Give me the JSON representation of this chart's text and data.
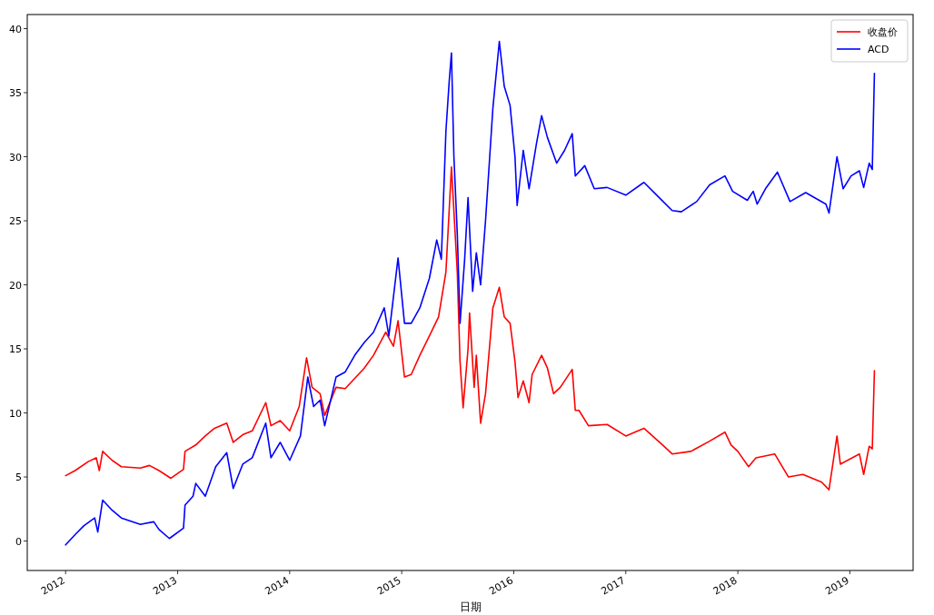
{
  "chart_data": {
    "type": "line",
    "xlabel": "日期",
    "legend": "top right",
    "xlim": [
      "2011-08-29",
      "2019-07-26"
    ],
    "ylim": [
      -2.3,
      41.1
    ],
    "xticks": [
      "2012",
      "2013",
      "2014",
      "2015",
      "2016",
      "2017",
      "2018",
      "2019"
    ],
    "yticks": [
      0,
      5,
      10,
      15,
      20,
      25,
      30,
      35,
      40
    ],
    "series": [
      {
        "name": "收盘价",
        "color": "#ff0000",
        "x": [
          "2012-01-01",
          "2012-02-01",
          "2012-03-15",
          "2012-04-10",
          "2012-04-20",
          "2012-05-01",
          "2012-06-01",
          "2012-07-01",
          "2012-09-01",
          "2012-10-01",
          "2012-11-01",
          "2012-12-10",
          "2013-01-20",
          "2013-01-25",
          "2013-03-01",
          "2013-04-01",
          "2013-05-01",
          "2013-06-10",
          "2013-07-01",
          "2013-08-01",
          "2013-09-01",
          "2013-10-15",
          "2013-11-01",
          "2013-12-01",
          "2014-01-01",
          "2014-02-01",
          "2014-02-25",
          "2014-03-15",
          "2014-04-10",
          "2014-04-25",
          "2014-06-01",
          "2014-07-01",
          "2014-09-01",
          "2014-10-01",
          "2014-11-10",
          "2014-12-05",
          "2014-12-20",
          "2015-01-10",
          "2015-02-01",
          "2015-03-01",
          "2015-04-01",
          "2015-05-01",
          "2015-05-25",
          "2015-06-12",
          "2015-07-01",
          "2015-07-10",
          "2015-07-20",
          "2015-08-05",
          "2015-08-10",
          "2015-08-25",
          "2015-09-01",
          "2015-09-15",
          "2015-10-01",
          "2015-10-25",
          "2015-11-15",
          "2015-12-01",
          "2015-12-20",
          "2016-01-05",
          "2016-01-15",
          "2016-02-01",
          "2016-02-20",
          "2016-03-01",
          "2016-04-01",
          "2016-04-20",
          "2016-05-10",
          "2016-06-01",
          "2016-07-10",
          "2016-07-20",
          "2016-08-01",
          "2016-09-01",
          "2016-11-01",
          "2017-01-01",
          "2017-03-01",
          "2017-05-01",
          "2017-06-01",
          "2017-08-01",
          "2017-10-01",
          "2017-11-20",
          "2017-12-10",
          "2018-01-01",
          "2018-02-05",
          "2018-03-01",
          "2018-05-01",
          "2018-06-15",
          "2018-08-01",
          "2018-10-01",
          "2018-10-25",
          "2018-11-20",
          "2018-12-01",
          "2019-02-01",
          "2019-02-15",
          "2019-03-05",
          "2019-03-15",
          "2019-03-22"
        ],
        "values": [
          5.1,
          5.5,
          6.2,
          6.5,
          5.5,
          7.0,
          6.3,
          5.8,
          5.7,
          5.9,
          5.5,
          4.9,
          5.6,
          7.0,
          7.5,
          8.2,
          8.8,
          9.2,
          7.7,
          8.3,
          8.6,
          10.8,
          9.0,
          9.4,
          8.6,
          10.5,
          14.3,
          12.0,
          11.5,
          9.8,
          12.0,
          11.9,
          13.5,
          14.5,
          16.3,
          15.2,
          17.2,
          12.8,
          13.0,
          14.5,
          16.0,
          17.5,
          21.0,
          29.2,
          21.0,
          14.0,
          10.4,
          15.0,
          17.8,
          12.0,
          14.5,
          9.2,
          11.5,
          18.2,
          19.8,
          17.5,
          17.0,
          14.0,
          11.2,
          12.5,
          10.8,
          13.0,
          14.5,
          13.5,
          11.5,
          12.0,
          13.4,
          10.2,
          10.2,
          9.0,
          9.1,
          8.2,
          8.8,
          7.5,
          6.8,
          7.0,
          7.8,
          8.5,
          7.5,
          7.0,
          5.8,
          6.5,
          6.8,
          5.0,
          5.2,
          4.6,
          4.0,
          8.2,
          6.0,
          6.8,
          5.2,
          7.4,
          7.2,
          13.3
        ]
      },
      {
        "name": "ACD",
        "color": "#0000ff",
        "x": [
          "2012-01-01",
          "2012-02-01",
          "2012-03-01",
          "2012-04-05",
          "2012-04-15",
          "2012-05-01",
          "2012-06-01",
          "2012-07-01",
          "2012-09-01",
          "2012-10-15",
          "2012-11-01",
          "2012-12-05",
          "2013-01-20",
          "2013-01-25",
          "2013-02-20",
          "2013-03-01",
          "2013-04-01",
          "2013-05-05",
          "2013-06-10",
          "2013-07-01",
          "2013-08-01",
          "2013-09-01",
          "2013-10-15",
          "2013-11-01",
          "2013-12-01",
          "2014-01-01",
          "2014-02-05",
          "2014-03-01",
          "2014-03-20",
          "2014-04-10",
          "2014-04-25",
          "2014-06-01",
          "2014-07-01",
          "2014-08-01",
          "2014-09-01",
          "2014-10-01",
          "2014-11-05",
          "2014-11-20",
          "2014-12-20",
          "2015-01-10",
          "2015-02-01",
          "2015-03-01",
          "2015-04-01",
          "2015-04-25",
          "2015-05-10",
          "2015-05-25",
          "2015-06-05",
          "2015-06-12",
          "2015-06-20",
          "2015-07-01",
          "2015-07-10",
          "2015-07-25",
          "2015-08-05",
          "2015-08-20",
          "2015-09-01",
          "2015-09-15",
          "2015-10-01",
          "2015-10-25",
          "2015-11-15",
          "2015-12-01",
          "2015-12-20",
          "2016-01-05",
          "2016-01-12",
          "2016-02-01",
          "2016-02-20",
          "2016-03-15",
          "2016-04-01",
          "2016-04-20",
          "2016-05-20",
          "2016-06-15",
          "2016-07-10",
          "2016-07-20",
          "2016-08-20",
          "2016-09-20",
          "2016-11-01",
          "2017-01-01",
          "2017-03-01",
          "2017-04-20",
          "2017-06-01",
          "2017-07-01",
          "2017-08-20",
          "2017-10-01",
          "2017-11-20",
          "2017-12-15",
          "2018-02-01",
          "2018-02-20",
          "2018-03-05",
          "2018-04-01",
          "2018-05-10",
          "2018-06-20",
          "2018-08-10",
          "2018-10-15",
          "2018-10-25",
          "2018-11-20",
          "2018-12-10",
          "2019-01-05",
          "2019-02-01",
          "2019-02-15",
          "2019-03-05",
          "2019-03-15",
          "2019-03-22"
        ],
        "values": [
          -0.3,
          0.5,
          1.2,
          1.8,
          0.7,
          3.2,
          2.4,
          1.8,
          1.3,
          1.5,
          0.9,
          0.2,
          1.0,
          2.8,
          3.5,
          4.5,
          3.5,
          5.8,
          6.9,
          4.1,
          6.0,
          6.5,
          9.2,
          6.5,
          7.7,
          6.3,
          8.2,
          12.8,
          10.5,
          11.0,
          9.0,
          12.8,
          13.2,
          14.5,
          15.5,
          16.3,
          18.2,
          16.0,
          22.1,
          17.0,
          17.0,
          18.2,
          20.5,
          23.5,
          22.0,
          32.0,
          36.0,
          38.1,
          30.0,
          24.0,
          17.0,
          22.0,
          26.8,
          19.5,
          22.5,
          20.0,
          25.0,
          33.8,
          39.0,
          35.5,
          34.0,
          30.0,
          26.2,
          30.5,
          27.5,
          31.0,
          33.2,
          31.5,
          29.5,
          30.5,
          31.8,
          28.5,
          29.3,
          27.5,
          27.6,
          27.0,
          28.0,
          26.8,
          25.8,
          25.7,
          26.5,
          27.8,
          28.5,
          27.3,
          26.6,
          27.3,
          26.3,
          27.5,
          28.8,
          26.5,
          27.2,
          26.3,
          25.6,
          30.0,
          27.5,
          28.5,
          28.9,
          27.6,
          29.5,
          29.0,
          36.5
        ]
      }
    ]
  }
}
